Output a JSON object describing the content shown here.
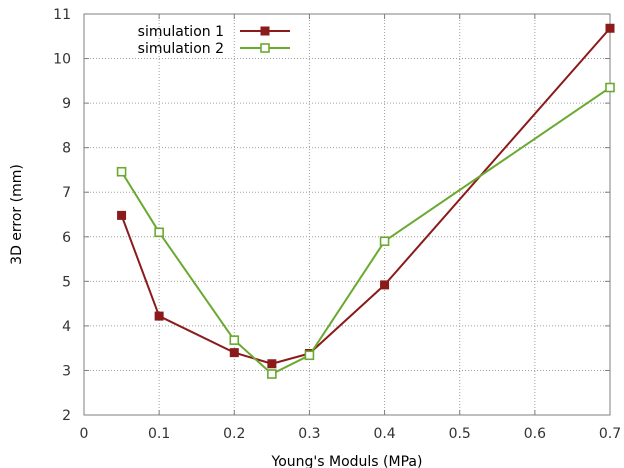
{
  "chart_data": {
    "type": "line",
    "xlabel": "Young's Moduls (MPa)",
    "ylabel": "3D error (mm)",
    "xlim": [
      0,
      0.7
    ],
    "ylim": [
      2,
      11
    ],
    "xticks": [
      0,
      0.1,
      0.2,
      0.3,
      0.4,
      0.5,
      0.6,
      0.7
    ],
    "xtick_labels": [
      "0",
      "0.1",
      "0.2",
      "0.3",
      "0.4",
      "0.5",
      "0.6",
      "0.7"
    ],
    "yticks": [
      2,
      3,
      4,
      5,
      6,
      7,
      8,
      9,
      10,
      11
    ],
    "ytick_labels": [
      "2",
      "3",
      "4",
      "5",
      "6",
      "7",
      "8",
      "9",
      "10",
      "11"
    ],
    "grid": true,
    "legend_position": "top-left",
    "series": [
      {
        "name": "simulation 1",
        "color": "#8b1a1a",
        "marker": "filled-square",
        "x": [
          0.05,
          0.1,
          0.2,
          0.25,
          0.3,
          0.4,
          0.7
        ],
        "y": [
          6.48,
          4.22,
          3.4,
          3.15,
          3.38,
          4.92,
          10.68
        ]
      },
      {
        "name": "simulation 2",
        "color": "#6aaa30",
        "marker": "open-square",
        "x": [
          0.05,
          0.1,
          0.2,
          0.25,
          0.3,
          0.4,
          0.7
        ],
        "y": [
          7.46,
          6.1,
          3.68,
          2.92,
          3.34,
          5.9,
          9.35
        ]
      }
    ]
  }
}
